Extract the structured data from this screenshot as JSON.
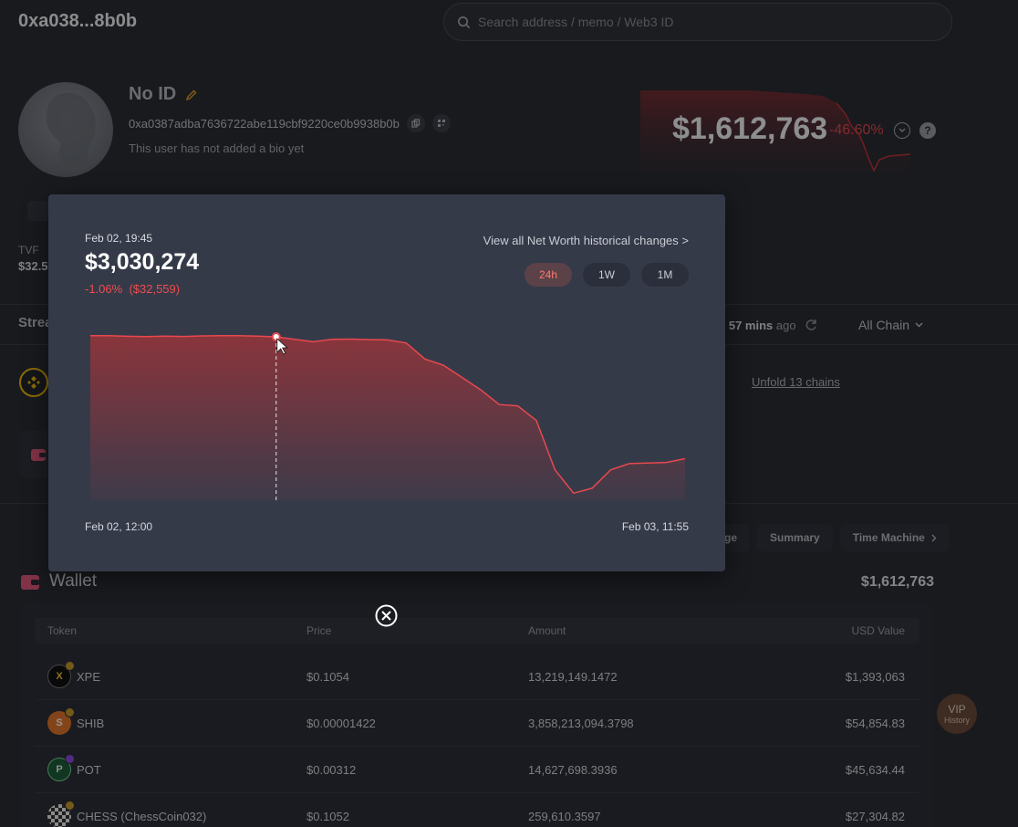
{
  "header": {
    "address_short": "0xa038...8b0b",
    "search_placeholder": "Search address / memo / Web3 ID"
  },
  "profile": {
    "name": "No ID",
    "address": "0xa0387adba7636722abe119cbf9220ce0b9938b0b",
    "bio": "This user has not added a bio yet"
  },
  "networth": {
    "value": "$1,612,763",
    "change": "-46.60%"
  },
  "tvf": {
    "label": "TVF",
    "value": "$32.5"
  },
  "streams": {
    "label": "Strea",
    "updated_prefix": "d",
    "updated_time": "57 mins",
    "updated_suffix": "ago",
    "chain_filter": "All Chain"
  },
  "unfold": "Unfold 13 chains",
  "tabs": [
    "ge",
    "Summary",
    "Time Machine"
  ],
  "wallet": {
    "title": "Wallet",
    "total": "$1,612,763",
    "columns": [
      "Token",
      "Price",
      "Amount",
      "USD Value"
    ],
    "rows": [
      {
        "token": "XPE",
        "price": "$0.1054",
        "amount": "13,219,149.1472",
        "usd": "$1,393,063"
      },
      {
        "token": "SHIB",
        "price": "$0.00001422",
        "amount": "3,858,213,094.3798",
        "usd": "$54,854.83"
      },
      {
        "token": "POT",
        "price": "$0.00312",
        "amount": "14,627,698.3936",
        "usd": "$45,634.44"
      },
      {
        "token": "CHESS (ChessCoin032)",
        "price": "$0.1052",
        "amount": "259,610.3597",
        "usd": "$27,304.82"
      }
    ]
  },
  "vip": {
    "label": "VIP",
    "sub": "History"
  },
  "popup": {
    "hover_date": "Feb 02, 19:45",
    "hover_value": "$3,030,274",
    "hover_change_pct": "-1.06%",
    "hover_change_abs": "($32,559)",
    "link": "View all Net Worth historical changes >",
    "ranges": [
      "24h",
      "1W",
      "1M"
    ],
    "active_range": "24h",
    "x_start": "Feb 02, 12:00",
    "x_end": "Feb 03, 11:55"
  },
  "colors": {
    "accent_red": "#ee4d4d",
    "active_range_bg": "#5b4148",
    "popup_bg": "#353a49"
  },
  "chart_data": {
    "type": "area",
    "x_start": "Feb 02, 12:00",
    "x_end": "Feb 03, 11:55",
    "highlight": {
      "x": "Feb 02, 19:45",
      "y": 3030274
    },
    "values": [
      3040000,
      3040000,
      3035000,
      3032000,
      3036000,
      3033000,
      3038000,
      3040000,
      3040000,
      3036000,
      3030274,
      3010000,
      2990000,
      3010000,
      3012000,
      3008000,
      3005000,
      2980000,
      2850000,
      2800000,
      2700000,
      2600000,
      2480000,
      2470000,
      2350000,
      1950000,
      1760000,
      1800000,
      1950000,
      2000000,
      2005000,
      2010000,
      2040000
    ]
  }
}
